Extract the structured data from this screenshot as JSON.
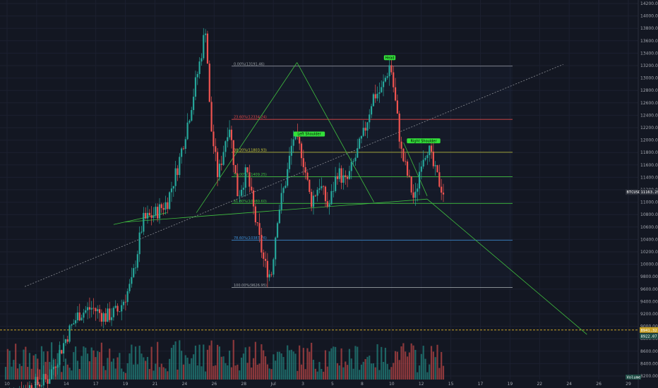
{
  "chart_data": {
    "type": "candlestick",
    "symbol": "BTCUSD",
    "ylim": [
      8200,
      14200
    ],
    "x_ticks": [
      "10",
      "12",
      "14",
      "17",
      "19",
      "21",
      "24",
      "26",
      "28",
      "Jul",
      "3",
      "5",
      "8",
      "10",
      "12",
      "15",
      "17",
      "19",
      "22",
      "24",
      "26",
      "29"
    ],
    "y_ticks": [
      8200,
      8400,
      8600,
      8800,
      9000,
      9200,
      9400,
      9600,
      9800,
      10000,
      10200,
      10400,
      10600,
      10800,
      11000,
      11200,
      11400,
      11600,
      11800,
      12000,
      12200,
      12400,
      12600,
      12800,
      13000,
      13200,
      13400,
      13600,
      13800,
      14000,
      14200
    ],
    "y_tick_labels": [
      "8200.00",
      "8400.00",
      "8600.00",
      "8800.00",
      "9000.00",
      "9200.00",
      "9400.00",
      "9600.00",
      "9800.00",
      "10000.00",
      "10200.00",
      "10400.00",
      "10600.00",
      "10800.00",
      "11000.00",
      "11200.00",
      "11400.00",
      "11600.00",
      "11800.00",
      "12000.00",
      "12200.00",
      "12400.00",
      "12600.00",
      "12800.00",
      "13000.00",
      "13200.00",
      "13400.00",
      "13600.00",
      "13800.00",
      "14000.00",
      "14200.00"
    ],
    "fibonacci": [
      {
        "label": "0.00%(13191.46)",
        "value": 13191.46,
        "color": "#9aa0a6"
      },
      {
        "label": "23.60%(12334.24)",
        "value": 12334.24,
        "color": "#e04848"
      },
      {
        "label": "38.20%(11803.93)",
        "value": 11803.93,
        "color": "#c8c83a"
      },
      {
        "label": "50.00%(11409.25)",
        "value": 11409.25,
        "color": "#3fbf3f"
      },
      {
        "label": "61.80%(10980.60)",
        "value": 10980.6,
        "color": "#3fbf3f"
      },
      {
        "label": "78.60%(10387.76)",
        "value": 10387.76,
        "color": "#3d8fd6"
      },
      {
        "label": "100.00%(9626.95)",
        "value": 9626.95,
        "color": "#9aa0a6"
      }
    ],
    "annotations": [
      {
        "text": "Left Shoulder",
        "value": 12070
      },
      {
        "text": "Head",
        "value": 13300
      },
      {
        "text": "Right Shoulder",
        "value": 11960
      }
    ],
    "pattern_lines": [
      {
        "from": [
          3.6,
          10640
        ],
        "to": [
          5.4,
          10830
        ],
        "color": "#3fbf3f"
      },
      {
        "from": [
          4.0,
          10680
        ],
        "to": [
          14.2,
          11050
        ],
        "color": "#3fbf3f"
      },
      {
        "from": [
          14.2,
          11050
        ],
        "to": [
          19.6,
          8870
        ],
        "color": "#3fbf3f"
      },
      {
        "from": [
          13.4,
          11960
        ],
        "to": [
          14.2,
          11100
        ],
        "color": "#3fbf3f"
      },
      {
        "from": [
          9.8,
          13250
        ],
        "to": [
          12.4,
          11000
        ],
        "color": "#3fbf3f"
      },
      {
        "from": [
          6.4,
          10830
        ],
        "to": [
          9.8,
          13250
        ],
        "color": "#3fbf3f"
      },
      {
        "from": [
          0.6,
          9640
        ],
        "to": [
          18.8,
          13220
        ],
        "color": "#8a8d94"
      }
    ],
    "price_labels": [
      {
        "text": "BTCUSD",
        "value": 11163.29,
        "bg": "#2a2e39"
      },
      {
        "text": "11163.29",
        "value": 11163.29,
        "bg": "#2a2e39"
      },
      {
        "text": "8941.32",
        "value": 8941.32,
        "bg": "#c9a227"
      },
      {
        "text": "8922.07",
        "value": 8922.07,
        "bg": "#1f4d46"
      }
    ],
    "horizontal_line": {
      "value": 8941.32,
      "color": "#c9a227"
    },
    "candles_summary": {
      "start_price": 7900,
      "peak": 13850,
      "peak_date": "26",
      "head_high": 13250,
      "last_close": 11163.29
    },
    "volume_label": "Volume"
  }
}
